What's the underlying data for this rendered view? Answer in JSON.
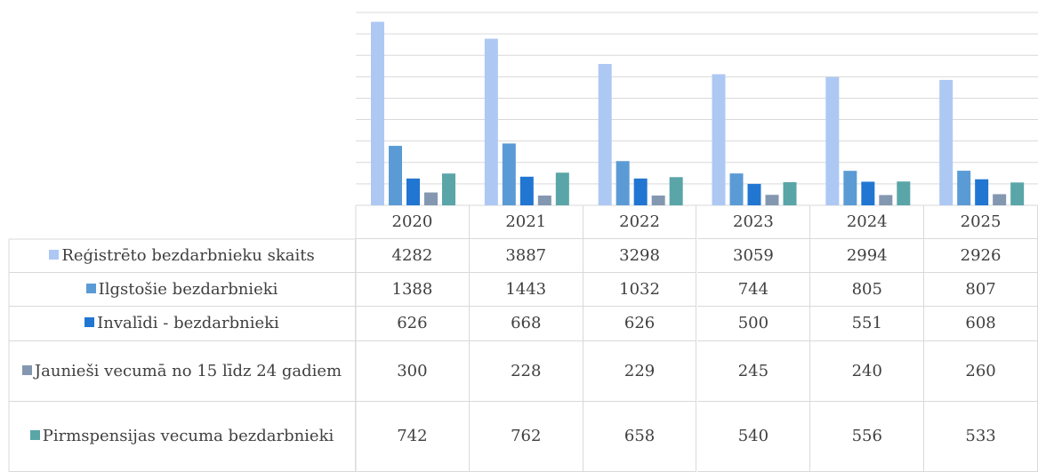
{
  "chart_data": {
    "type": "bar",
    "categories": [
      "2020",
      "2021",
      "2022",
      "2023",
      "2024",
      "2025"
    ],
    "series": [
      {
        "name": "Reģistrēto bezdarbnieku skaits",
        "color": "#aec8f4",
        "values": [
          4282,
          3887,
          3298,
          3059,
          2994,
          2926
        ]
      },
      {
        "name": "Ilgstošie bezdarbnieki",
        "color": "#5b9bd5",
        "values": [
          1388,
          1443,
          1032,
          744,
          805,
          807
        ]
      },
      {
        "name": "Invalīdi - bezdarbnieki",
        "color": "#2176d2",
        "values": [
          626,
          668,
          626,
          500,
          551,
          608
        ]
      },
      {
        "name": "Jaunieši vecumā no 15 līdz 24 gadiem",
        "color": "#8497b0",
        "values": [
          300,
          228,
          229,
          245,
          240,
          260
        ]
      },
      {
        "name": "Pirmspensijas vecuma bezdarbnieki",
        "color": "#5aa5a8",
        "values": [
          742,
          762,
          658,
          540,
          556,
          533
        ]
      }
    ],
    "ylim": [
      0,
      4500
    ],
    "yticks": [
      0,
      500,
      1000,
      1500,
      2000,
      2500,
      3000,
      3500,
      4000,
      4500
    ],
    "grid": true
  }
}
